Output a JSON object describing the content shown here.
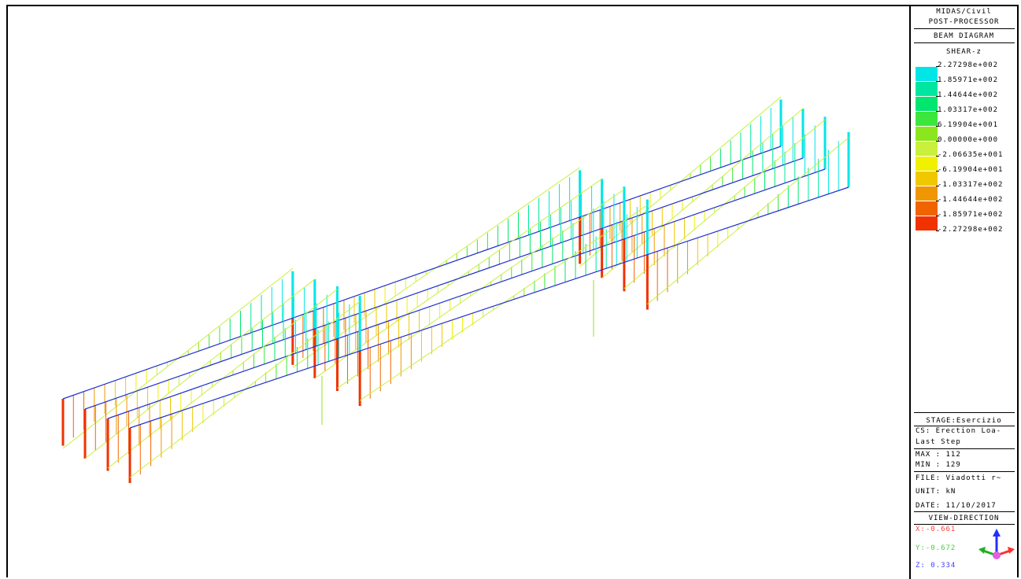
{
  "header": {
    "product": "MIDAS/Civil",
    "module": "POST-PROCESSOR",
    "diagram_type": "BEAM DIAGRAM",
    "result_component": "SHEAR-z"
  },
  "legend": {
    "values": [
      "2.27298e+002",
      "1.85971e+002",
      "1.44644e+002",
      "1.03317e+002",
      "6.19904e+001",
      "0.00000e+000",
      "-2.06635e+001",
      "-6.19904e+001",
      "-1.03317e+002",
      "-1.44644e+002",
      "-1.85971e+002",
      "-2.27298e+002"
    ],
    "colors": [
      "#0000e6",
      "#00e6e6",
      "#00e6a0",
      "#00e66e",
      "#3ce63c",
      "#8ce61e",
      "#c8f03c",
      "#f0f000",
      "#f0c800",
      "#f09600",
      "#f06400",
      "#f03200"
    ]
  },
  "info": {
    "stage": "STAGE:Esercizio",
    "cs_line1": "CS: Erection Loa-",
    "cs_line2": "Last Step",
    "max": "MAX : 112",
    "min": "MIN : 129",
    "file": "FILE: Viadotti r~",
    "unit": "UNIT: kN",
    "date": "DATE: 11/10/2017"
  },
  "view_direction": {
    "title": "VIEW-DIRECTION",
    "x": "X:-0.661",
    "y": "Y:-0.672",
    "z": "Z: 0.334",
    "colors": {
      "x": "#ff4040",
      "y": "#40d040",
      "z": "#4040ff"
    }
  }
}
